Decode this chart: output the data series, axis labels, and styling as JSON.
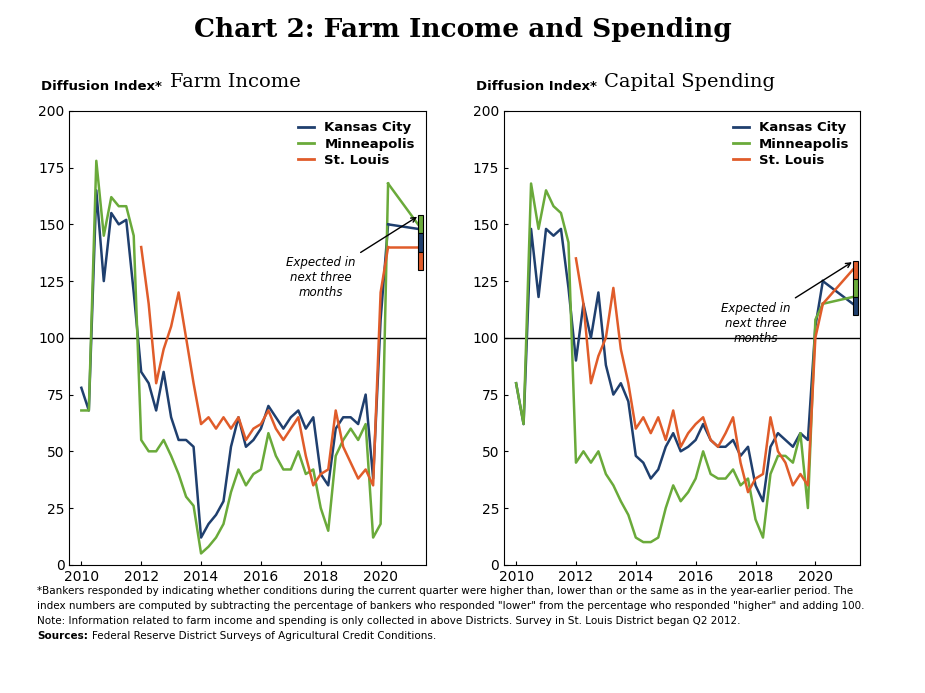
{
  "title": "Chart 2: Farm Income and Spending",
  "subtitle_left": "Farm Income",
  "subtitle_right": "Capital Spending",
  "ylabel": "Diffusion Index*",
  "colors": {
    "kansas_city": "#1f3f6e",
    "minneapolis": "#6aaa3a",
    "st_louis": "#e05c2a"
  },
  "annotation_text": "Expected in\nnext three\nmonths",
  "farm_income": {
    "kansas_city": [
      78,
      68,
      165,
      125,
      155,
      150,
      152,
      120,
      85,
      80,
      68,
      85,
      65,
      55,
      55,
      52,
      12,
      18,
      22,
      28,
      52,
      65,
      52,
      55,
      60,
      70,
      65,
      60,
      65,
      68,
      60,
      65,
      40,
      35,
      60,
      65,
      65,
      62,
      75,
      38,
      108,
      150
    ],
    "minneapolis": [
      68,
      68,
      178,
      145,
      162,
      158,
      158,
      145,
      55,
      50,
      50,
      55,
      48,
      40,
      30,
      26,
      5,
      8,
      12,
      18,
      32,
      42,
      35,
      40,
      42,
      58,
      48,
      42,
      42,
      50,
      40,
      42,
      25,
      15,
      48,
      55,
      60,
      55,
      62,
      12,
      18,
      168
    ],
    "st_louis": [
      null,
      null,
      null,
      null,
      null,
      null,
      null,
      null,
      140,
      115,
      80,
      95,
      105,
      120,
      100,
      80,
      62,
      65,
      60,
      65,
      60,
      65,
      55,
      60,
      62,
      68,
      60,
      55,
      60,
      65,
      48,
      35,
      40,
      42,
      68,
      52,
      45,
      38,
      42,
      35,
      120,
      140
    ],
    "kansas_city_exp": 148,
    "minneapolis_exp": 150,
    "st_louis_exp": 140
  },
  "capital_spending": {
    "kansas_city": [
      80,
      62,
      148,
      118,
      148,
      145,
      148,
      122,
      90,
      115,
      100,
      120,
      88,
      75,
      80,
      72,
      48,
      45,
      38,
      42,
      52,
      58,
      50,
      52,
      55,
      62,
      55,
      52,
      52,
      55,
      48,
      52,
      35,
      28,
      52,
      58,
      55,
      52,
      58,
      55,
      105,
      125
    ],
    "minneapolis": [
      80,
      62,
      168,
      148,
      165,
      158,
      155,
      142,
      45,
      50,
      45,
      50,
      40,
      35,
      28,
      22,
      12,
      10,
      10,
      12,
      25,
      35,
      28,
      32,
      38,
      50,
      40,
      38,
      38,
      42,
      35,
      38,
      20,
      12,
      40,
      48,
      48,
      45,
      58,
      25,
      108,
      115
    ],
    "st_louis": [
      null,
      null,
      null,
      null,
      null,
      null,
      null,
      null,
      135,
      115,
      80,
      92,
      100,
      122,
      95,
      80,
      60,
      65,
      58,
      65,
      55,
      68,
      52,
      58,
      62,
      65,
      55,
      52,
      58,
      65,
      45,
      32,
      38,
      40,
      65,
      50,
      45,
      35,
      40,
      35,
      100,
      115
    ],
    "kansas_city_exp": 115,
    "minneapolis_exp": 118,
    "st_louis_exp": 130
  },
  "ylim": [
    0,
    200
  ],
  "yticks": [
    0,
    25,
    50,
    75,
    100,
    125,
    150,
    175,
    200
  ],
  "xtick_locs": [
    2010,
    2012,
    2014,
    2016,
    2018,
    2020
  ],
  "footnote1": "*Bankers responded by indicating whether conditions during the current quarter were higher than, lower than or the same as in the year-earlier period. The",
  "footnote2": "index numbers are computed by subtracting the percentage of bankers who responded \"lower\" from the percentage who responded \"higher\" and adding 100.",
  "footnote3": "Note: Information related to farm income and spending is only collected in above Districts. Survey in St. Louis District began Q2 2012.",
  "footnote4": "Federal Reserve District Surveys of Agricultural Credit Conditions."
}
